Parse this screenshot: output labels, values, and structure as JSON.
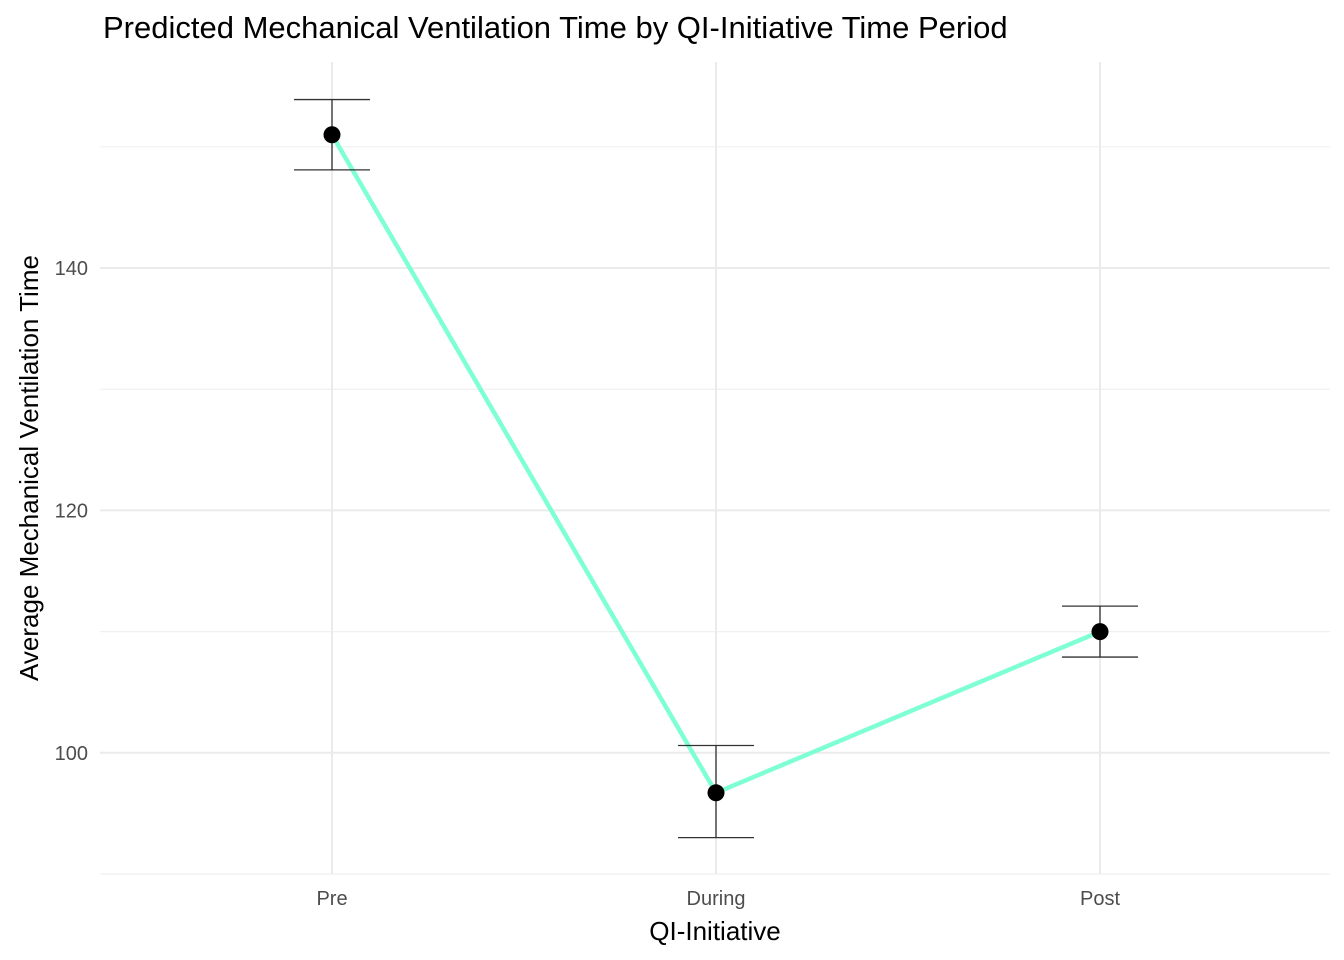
{
  "chart_data": {
    "type": "line",
    "title": "Predicted Mechanical Ventilation Time by QI-Initiative Time Period",
    "xlabel": "QI-Initiative",
    "ylabel": "Average Mechanical Ventilation Time",
    "categories": [
      "Pre",
      "During",
      "Post"
    ],
    "series": [
      {
        "values": [
          151.0,
          96.7,
          110.0
        ],
        "ci_lower": [
          148.1,
          93.0,
          107.9
        ],
        "ci_upper": [
          153.9,
          100.6,
          112.1
        ]
      }
    ],
    "ylim": [
      90,
      157
    ],
    "yticks": [
      100,
      120,
      140
    ],
    "grid": true,
    "legend": "none",
    "line_color": "#7fffd4",
    "point_color": "#000000",
    "errorbar_color": "#333333"
  }
}
